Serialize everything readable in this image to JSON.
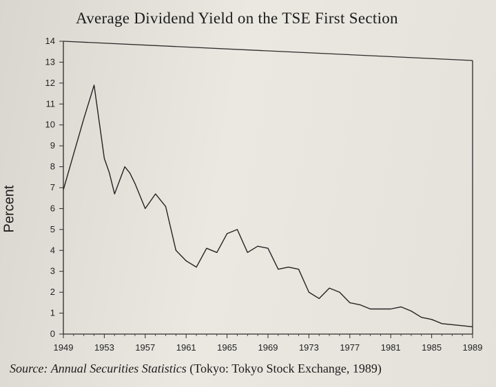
{
  "source": {
    "prefix": "Source:",
    "work": "Annual Securities Statistics",
    "detail": "(Tokyo: Tokyo Stock Exchange, 1989)"
  },
  "chart_data": {
    "type": "line",
    "title": "Average Dividend Yield on the TSE First Section",
    "xlabel": "",
    "ylabel": "Percent",
    "xlim": [
      1949,
      1989
    ],
    "ylim": [
      0,
      14
    ],
    "x_ticks": [
      1949,
      1953,
      1957,
      1961,
      1965,
      1969,
      1973,
      1977,
      1981,
      1985,
      1989
    ],
    "y_ticks": [
      0,
      1,
      2,
      3,
      4,
      5,
      6,
      7,
      8,
      9,
      10,
      11,
      12,
      13,
      14
    ],
    "grid": false,
    "series": [
      {
        "color": "#222222",
        "x": [
          1949,
          1950,
          1951,
          1952,
          1953,
          1953.5,
          1954,
          1955,
          1955.5,
          1956,
          1957,
          1958,
          1959,
          1960,
          1961,
          1962,
          1963,
          1964,
          1965,
          1966,
          1967,
          1968,
          1969,
          1970,
          1971,
          1972,
          1973,
          1974,
          1975,
          1976,
          1977,
          1978,
          1979,
          1980,
          1981,
          1982,
          1983,
          1984,
          1985,
          1986,
          1987,
          1988,
          1989
        ],
        "y": [
          6.9,
          8.6,
          10.3,
          11.9,
          8.4,
          7.7,
          6.7,
          8.0,
          7.7,
          7.2,
          6.0,
          6.7,
          6.1,
          4.0,
          3.5,
          3.2,
          4.1,
          3.9,
          4.8,
          5.0,
          3.9,
          4.2,
          4.1,
          3.1,
          3.2,
          3.1,
          2.0,
          1.7,
          2.2,
          2.0,
          1.5,
          1.4,
          1.2,
          1.2,
          1.2,
          1.3,
          1.1,
          0.8,
          0.7,
          0.5,
          0.45,
          0.4,
          0.35
        ]
      }
    ]
  }
}
